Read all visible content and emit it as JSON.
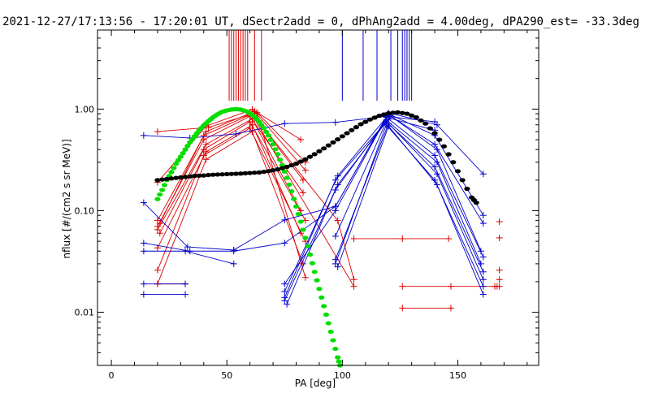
{
  "chart_data": {
    "type": "scatter",
    "title": "2021-12-27/17:13:56 - 17:20:01 UT, dSectr2add = 0, dPhAng2add = 4.00deg, dPA290_est= -33.3deg",
    "xlabel": "PA [deg]",
    "ylabel": "nflux [#/(cm2 s sr MeV)]",
    "xlim": [
      -6,
      185
    ],
    "ylim": [
      0.003,
      6
    ],
    "y_scale": "log",
    "x_ticks": [
      0,
      50,
      100,
      150
    ],
    "x_tick_labels": [
      "0",
      "50",
      "100",
      "150"
    ],
    "y_ticks": [
      1.0,
      0.1,
      0.01
    ],
    "y_tick_labels": [
      "1.00",
      "0.10",
      "0.01"
    ],
    "grid": false,
    "colors": {
      "red": "#dd0000",
      "blue": "#0000cc",
      "green": "#00dd00",
      "black": "#000000"
    },
    "marker_lines": {
      "red": [
        51,
        52,
        53,
        54,
        55,
        56,
        57,
        58,
        59,
        62,
        65
      ],
      "blue": [
        100,
        109,
        115,
        121,
        124,
        126,
        127,
        128,
        129,
        130
      ]
    },
    "series": [
      {
        "color": "red",
        "kind": "line",
        "points": [
          [
            20,
            0.19
          ],
          [
            41,
            0.68
          ],
          [
            61,
            0.99
          ],
          [
            82,
            0.5
          ]
        ]
      },
      {
        "color": "red",
        "kind": "line",
        "points": [
          [
            20,
            0.6
          ],
          [
            42,
            0.66
          ],
          [
            63,
            0.93
          ],
          [
            84,
            0.3
          ]
        ]
      },
      {
        "color": "red",
        "kind": "line",
        "points": [
          [
            20,
            0.08
          ],
          [
            41,
            0.6
          ],
          [
            62,
            0.95
          ],
          [
            84,
            0.25
          ]
        ]
      },
      {
        "color": "red",
        "kind": "line",
        "points": [
          [
            21,
            0.075
          ],
          [
            40,
            0.55
          ],
          [
            61,
            0.9
          ],
          [
            83,
            0.2
          ]
        ]
      },
      {
        "color": "red",
        "kind": "line",
        "points": [
          [
            20,
            0.07
          ],
          [
            40,
            0.5
          ],
          [
            60,
            0.85
          ],
          [
            83,
            0.15
          ]
        ]
      },
      {
        "color": "red",
        "kind": "line",
        "points": [
          [
            20,
            0.065
          ],
          [
            41,
            0.45
          ],
          [
            61,
            0.8
          ],
          [
            82,
            0.1
          ]
        ]
      },
      {
        "color": "red",
        "kind": "line",
        "points": [
          [
            21,
            0.06
          ],
          [
            40,
            0.4
          ],
          [
            60,
            0.75
          ],
          [
            84,
            0.08
          ]
        ]
      },
      {
        "color": "red",
        "kind": "line",
        "points": [
          [
            20,
            0.043
          ],
          [
            41,
            0.38
          ],
          [
            61,
            0.7
          ],
          [
            82,
            0.06
          ]
        ]
      },
      {
        "color": "red",
        "kind": "line",
        "points": [
          [
            20,
            0.026
          ],
          [
            40,
            0.35
          ],
          [
            60,
            0.65
          ],
          [
            84,
            0.05
          ]
        ]
      },
      {
        "color": "red",
        "kind": "line",
        "points": [
          [
            20,
            0.019
          ],
          [
            41,
            0.32
          ],
          [
            61,
            0.6
          ],
          [
            83,
            0.03
          ]
        ]
      },
      {
        "color": "red",
        "kind": "line",
        "points": [
          [
            63,
            0.9
          ],
          [
            84,
            0.022
          ]
        ]
      },
      {
        "color": "red",
        "kind": "line",
        "points": [
          [
            62,
            0.85
          ],
          [
            98,
            0.08
          ],
          [
            105,
            0.021
          ]
        ]
      },
      {
        "color": "red",
        "kind": "line",
        "points": [
          [
            62,
            0.8
          ],
          [
            105,
            0.018
          ]
        ]
      },
      {
        "color": "red",
        "kind": "line",
        "points": [
          [
            105,
            0.053
          ],
          [
            126,
            0.053
          ],
          [
            146,
            0.053
          ]
        ]
      },
      {
        "color": "red",
        "kind": "line",
        "points": [
          [
            126,
            0.018
          ],
          [
            147,
            0.018
          ],
          [
            168,
            0.018
          ]
        ]
      },
      {
        "color": "red",
        "kind": "line",
        "points": [
          [
            126,
            0.011
          ],
          [
            147,
            0.011
          ]
        ]
      },
      {
        "color": "red",
        "kind": "line",
        "points": [
          [
            20,
            0.019
          ],
          [
            32,
            0.019
          ]
        ]
      },
      {
        "color": "red",
        "kind": "markers",
        "points": [
          [
            168,
            0.078
          ],
          [
            168,
            0.054
          ],
          [
            168,
            0.026
          ],
          [
            168,
            0.021
          ],
          [
            167,
            0.018
          ],
          [
            166,
            0.018
          ]
        ]
      },
      {
        "color": "blue",
        "kind": "line",
        "points": [
          [
            14,
            0.55
          ],
          [
            34,
            0.52
          ],
          [
            54,
            0.57
          ],
          [
            75,
            0.72
          ],
          [
            97,
            0.74
          ],
          [
            119,
            0.85
          ],
          [
            140,
            0.75
          ]
        ]
      },
      {
        "color": "blue",
        "kind": "line",
        "points": [
          [
            14,
            0.12
          ],
          [
            33,
            0.044
          ],
          [
            53,
            0.041
          ],
          [
            75,
            0.081
          ],
          [
            97,
            0.11
          ],
          [
            119,
            0.83
          ],
          [
            140,
            0.62
          ]
        ]
      },
      {
        "color": "blue",
        "kind": "line",
        "points": [
          [
            14,
            0.048
          ],
          [
            34,
            0.04
          ]
        ]
      },
      {
        "color": "blue",
        "kind": "line",
        "points": [
          [
            14,
            0.04
          ],
          [
            53,
            0.04
          ],
          [
            75,
            0.048
          ],
          [
            97,
            0.11
          ],
          [
            120,
            0.92
          ],
          [
            141,
            0.7
          ],
          [
            161,
            0.23
          ]
        ]
      },
      {
        "color": "blue",
        "kind": "line",
        "points": [
          [
            14,
            0.019
          ],
          [
            32,
            0.019
          ]
        ]
      },
      {
        "color": "blue",
        "kind": "line",
        "points": [
          [
            14,
            0.015
          ],
          [
            32,
            0.015
          ]
        ]
      },
      {
        "color": "blue",
        "kind": "line",
        "points": [
          [
            32,
            0.04
          ],
          [
            53,
            0.03
          ]
        ]
      },
      {
        "color": "blue",
        "kind": "line",
        "points": [
          [
            75,
            0.019
          ],
          [
            97,
            0.1
          ],
          [
            120,
            0.9
          ],
          [
            140,
            0.55
          ],
          [
            161,
            0.09
          ]
        ]
      },
      {
        "color": "blue",
        "kind": "line",
        "points": [
          [
            75,
            0.016
          ],
          [
            98,
            0.22
          ],
          [
            120,
            0.88
          ],
          [
            140,
            0.45
          ],
          [
            161,
            0.075
          ]
        ]
      },
      {
        "color": "blue",
        "kind": "line",
        "points": [
          [
            75,
            0.014
          ],
          [
            97,
            0.2
          ],
          [
            121,
            0.85
          ],
          [
            141,
            0.4
          ],
          [
            160,
            0.04
          ]
        ]
      },
      {
        "color": "blue",
        "kind": "line",
        "points": [
          [
            75,
            0.013
          ],
          [
            98,
            0.18
          ],
          [
            120,
            0.8
          ],
          [
            140,
            0.35
          ],
          [
            161,
            0.035
          ]
        ]
      },
      {
        "color": "blue",
        "kind": "line",
        "points": [
          [
            76,
            0.012
          ],
          [
            97,
            0.16
          ],
          [
            119,
            0.78
          ],
          [
            141,
            0.3
          ],
          [
            160,
            0.03
          ]
        ]
      },
      {
        "color": "blue",
        "kind": "line",
        "points": [
          [
            97,
            0.056
          ],
          [
            119,
            0.75
          ],
          [
            140,
            0.27
          ],
          [
            161,
            0.025
          ]
        ]
      },
      {
        "color": "blue",
        "kind": "line",
        "points": [
          [
            97,
            0.033
          ],
          [
            120,
            0.72
          ],
          [
            141,
            0.23
          ],
          [
            161,
            0.021
          ]
        ]
      },
      {
        "color": "blue",
        "kind": "line",
        "points": [
          [
            97,
            0.03
          ],
          [
            119,
            0.7
          ],
          [
            140,
            0.2
          ],
          [
            161,
            0.018
          ]
        ]
      },
      {
        "color": "blue",
        "kind": "line",
        "points": [
          [
            98,
            0.028
          ],
          [
            120,
            0.68
          ],
          [
            141,
            0.18
          ],
          [
            161,
            0.015
          ]
        ]
      },
      {
        "color": "green",
        "kind": "dots",
        "label": "",
        "points": [
          [
            20,
            0.13
          ],
          [
            22,
            0.16
          ],
          [
            24,
            0.2
          ],
          [
            26,
            0.24
          ],
          [
            28,
            0.29
          ],
          [
            30,
            0.34
          ],
          [
            32,
            0.4
          ],
          [
            34,
            0.47
          ],
          [
            36,
            0.54
          ],
          [
            38,
            0.62
          ],
          [
            40,
            0.69
          ],
          [
            42,
            0.76
          ],
          [
            44,
            0.83
          ],
          [
            46,
            0.89
          ],
          [
            48,
            0.94
          ],
          [
            50,
            0.97
          ],
          [
            52,
            0.99
          ],
          [
            54,
            1.0
          ],
          [
            56,
            0.99
          ],
          [
            58,
            0.96
          ],
          [
            60,
            0.91
          ],
          [
            62,
            0.84
          ],
          [
            64,
            0.75
          ],
          [
            66,
            0.65
          ],
          [
            68,
            0.55
          ],
          [
            70,
            0.45
          ],
          [
            72,
            0.36
          ],
          [
            74,
            0.28
          ],
          [
            76,
            0.21
          ],
          [
            78,
            0.155
          ],
          [
            80,
            0.11
          ],
          [
            82,
            0.078
          ],
          [
            84,
            0.054
          ],
          [
            86,
            0.037
          ],
          [
            88,
            0.025
          ],
          [
            90,
            0.017
          ],
          [
            92,
            0.0115
          ],
          [
            94,
            0.0078
          ],
          [
            96,
            0.0053
          ],
          [
            98,
            0.0036
          ],
          [
            99,
            0.003
          ]
        ]
      },
      {
        "color": "black",
        "kind": "dots",
        "label": "",
        "points": [
          [
            20,
            0.2
          ],
          [
            24,
            0.205
          ],
          [
            28,
            0.21
          ],
          [
            32,
            0.215
          ],
          [
            36,
            0.22
          ],
          [
            40,
            0.222
          ],
          [
            44,
            0.226
          ],
          [
            48,
            0.228
          ],
          [
            52,
            0.23
          ],
          [
            56,
            0.232
          ],
          [
            60,
            0.235
          ],
          [
            64,
            0.238
          ],
          [
            68,
            0.245
          ],
          [
            72,
            0.255
          ],
          [
            76,
            0.27
          ],
          [
            80,
            0.29
          ],
          [
            84,
            0.32
          ],
          [
            88,
            0.36
          ],
          [
            92,
            0.41
          ],
          [
            96,
            0.47
          ],
          [
            100,
            0.54
          ],
          [
            104,
            0.62
          ],
          [
            108,
            0.71
          ],
          [
            112,
            0.79
          ],
          [
            116,
            0.86
          ],
          [
            120,
            0.91
          ],
          [
            124,
            0.93
          ],
          [
            128,
            0.9
          ],
          [
            132,
            0.83
          ],
          [
            136,
            0.72
          ],
          [
            140,
            0.58
          ],
          [
            144,
            0.43
          ],
          [
            148,
            0.3
          ],
          [
            152,
            0.2
          ],
          [
            156,
            0.135
          ],
          [
            158,
            0.12
          ]
        ]
      }
    ]
  }
}
